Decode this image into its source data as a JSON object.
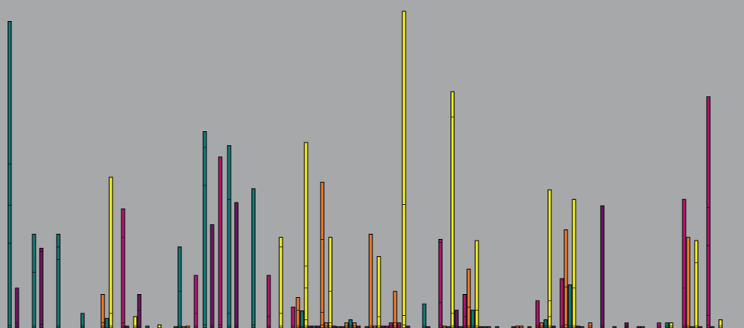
{
  "chart_data": {
    "type": "bar",
    "stacked": true,
    "title": "",
    "xlabel": "",
    "ylabel": "",
    "ylim": [
      0,
      100
    ],
    "grid": false,
    "legend": "none",
    "background": "#a7a8aa",
    "colors": {
      "teal": "#0f7b7b",
      "purple": "#6f1466",
      "magenta": "#b5136f",
      "yellow": "#f4f01e",
      "orange": "#ee7b2c"
    },
    "bars": [
      {
        "x": 12,
        "color": "teal",
        "segments": [
          0.8,
          26,
          12,
          13,
          45
        ]
      },
      {
        "x": 21,
        "color": "purple",
        "segments": [
          0.6,
          1,
          11
        ]
      },
      {
        "x": 42,
        "color": "teal",
        "segments": [
          0.6,
          17,
          12
        ]
      },
      {
        "x": 51,
        "color": "purple",
        "segments": [
          1.2,
          23,
          1
        ]
      },
      {
        "x": 72,
        "color": "teal",
        "segments": [
          0.6,
          21,
          4,
          4
        ]
      },
      {
        "x": 102,
        "color": "teal",
        "segments": [
          0.6,
          4
        ]
      },
      {
        "x": 127,
        "color": "orange",
        "segments": [
          0.6,
          1,
          9
        ]
      },
      {
        "x": 132,
        "color": "teal",
        "segments": [
          3
        ]
      },
      {
        "x": 137,
        "color": "yellow",
        "segments": [
          0.6,
          4,
          43
        ]
      },
      {
        "x": 152,
        "color": "magenta",
        "segments": [
          0.6,
          1,
          27,
          9
        ]
      },
      {
        "x": 157,
        "color": "purple",
        "segments": [
          0.6
        ]
      },
      {
        "x": 167,
        "color": "yellow",
        "segments": [
          0.6,
          3
        ]
      },
      {
        "x": 172,
        "color": "purple",
        "segments": [
          0.6,
          5,
          5
        ]
      },
      {
        "x": 182,
        "color": "teal",
        "segments": [
          0.6
        ]
      },
      {
        "x": 197,
        "color": "yellow",
        "segments": [
          1
        ]
      },
      {
        "x": 217,
        "color": "teal",
        "segments": [
          0.4
        ]
      },
      {
        "x": 222,
        "color": "teal",
        "segments": [
          0.6,
          11,
          14
        ]
      },
      {
        "x": 227,
        "color": "orange",
        "segments": [
          0.4
        ]
      },
      {
        "x": 232,
        "color": "orange",
        "segments": [
          0.6
        ]
      },
      {
        "x": 242,
        "color": "magenta",
        "segments": [
          0.6,
          4,
          12
        ]
      },
      {
        "x": 253,
        "color": "teal",
        "segments": [
          1,
          44,
          12,
          5
        ]
      },
      {
        "x": 262,
        "color": "purple",
        "segments": [
          0.6,
          32
        ]
      },
      {
        "x": 272,
        "color": "magenta",
        "segments": [
          1,
          53
        ]
      },
      {
        "x": 283,
        "color": "teal",
        "segments": [
          0.6,
          4,
          36,
          17
        ]
      },
      {
        "x": 292,
        "color": "purple",
        "segments": [
          0.6,
          39
        ]
      },
      {
        "x": 313,
        "color": "teal",
        "segments": [
          1,
          43
        ]
      },
      {
        "x": 332,
        "color": "magenta",
        "segments": [
          0.6,
          3,
          13
        ]
      },
      {
        "x": 347,
        "color": "yellow",
        "segments": [
          0.6,
          4,
          21,
          3
        ]
      },
      {
        "x": 362,
        "color": "magenta",
        "segments": [
          0.6,
          6
        ]
      },
      {
        "x": 368,
        "color": "orange",
        "segments": [
          0.6,
          5,
          4
        ]
      },
      {
        "x": 373,
        "color": "teal",
        "segments": [
          0.4,
          5
        ]
      },
      {
        "x": 378,
        "color": "yellow",
        "segments": [
          0.6,
          2,
          10,
          7,
          39
        ]
      },
      {
        "x": 383,
        "color": "purple",
        "segments": [
          0.6
        ]
      },
      {
        "x": 388,
        "color": "teal",
        "segments": [
          0.6
        ]
      },
      {
        "x": 393,
        "color": "purple",
        "segments": [
          0.6
        ]
      },
      {
        "x": 398,
        "color": "orange",
        "segments": [
          1,
          4,
          23,
          18
        ]
      },
      {
        "x": 403,
        "color": "orange",
        "segments": [
          0.6,
          1
        ]
      },
      {
        "x": 408,
        "color": "yellow",
        "segments": [
          0.6,
          1,
          10,
          17
        ]
      },
      {
        "x": 413,
        "color": "purple",
        "segments": [
          0.6
        ]
      },
      {
        "x": 418,
        "color": "teal",
        "segments": [
          0.4
        ]
      },
      {
        "x": 423,
        "color": "purple",
        "segments": [
          0.4
        ]
      },
      {
        "x": 428,
        "color": "orange",
        "segments": [
          0.6,
          1
        ]
      },
      {
        "x": 433,
        "color": "teal",
        "segments": [
          0.6,
          2
        ]
      },
      {
        "x": 438,
        "color": "orange",
        "segments": [
          0.6,
          1
        ]
      },
      {
        "x": 443,
        "color": "purple",
        "segments": [
          0.6
        ]
      },
      {
        "x": 453,
        "color": "teal",
        "segments": [
          0.4
        ]
      },
      {
        "x": 458,
        "color": "orange",
        "segments": [
          0.6,
          29
        ]
      },
      {
        "x": 463,
        "color": "orange",
        "segments": [
          0.6
        ]
      },
      {
        "x": 468,
        "color": "yellow",
        "segments": [
          0.6,
          3,
          19
        ]
      },
      {
        "x": 473,
        "color": "purple",
        "segments": [
          0.6
        ]
      },
      {
        "x": 478,
        "color": "magenta",
        "segments": [
          0.6
        ]
      },
      {
        "x": 483,
        "color": "magenta",
        "segments": [
          0.6,
          1
        ]
      },
      {
        "x": 488,
        "color": "orange",
        "segments": [
          0.6,
          1,
          10
        ]
      },
      {
        "x": 493,
        "color": "magenta",
        "segments": [
          0.6,
          1
        ]
      },
      {
        "x": 499,
        "color": "yellow",
        "segments": [
          1,
          3,
          35,
          61
        ]
      },
      {
        "x": 504,
        "color": "purple",
        "segments": [
          0.6
        ]
      },
      {
        "x": 524,
        "color": "teal",
        "segments": [
          0.6,
          7
        ]
      },
      {
        "x": 529,
        "color": "purple",
        "segments": [
          0.4
        ]
      },
      {
        "x": 544,
        "color": "magenta",
        "segments": [
          1,
          7,
          19,
          1
        ]
      },
      {
        "x": 549,
        "color": "orange",
        "segments": [
          0.6
        ]
      },
      {
        "x": 554,
        "color": "teal",
        "segments": [
          0.4
        ]
      },
      {
        "x": 559,
        "color": "yellow",
        "segments": [
          0.6,
          4,
          62,
          8
        ]
      },
      {
        "x": 564,
        "color": "purple",
        "segments": [
          0.6,
          5
        ]
      },
      {
        "x": 569,
        "color": "teal",
        "segments": [
          0.4
        ]
      },
      {
        "x": 574,
        "color": "magenta",
        "segments": [
          0.6,
          3,
          7
        ]
      },
      {
        "x": 579,
        "color": "orange",
        "segments": [
          0.6,
          6,
          12
        ]
      },
      {
        "x": 584,
        "color": "teal",
        "segments": [
          0.6,
          5
        ]
      },
      {
        "x": 589,
        "color": "yellow",
        "segments": [
          0.6,
          5,
          22
        ]
      },
      {
        "x": 594,
        "color": "purple",
        "segments": [
          0.4
        ]
      },
      {
        "x": 599,
        "color": "teal",
        "segments": [
          0.4
        ]
      },
      {
        "x": 604,
        "color": "teal",
        "segments": [
          0.4
        ]
      },
      {
        "x": 614,
        "color": "teal",
        "segments": [
          0.4
        ]
      },
      {
        "x": 634,
        "color": "purple",
        "segments": [
          0.4
        ]
      },
      {
        "x": 639,
        "color": "orange",
        "segments": [
          0.6
        ]
      },
      {
        "x": 644,
        "color": "orange",
        "segments": [
          0.6
        ]
      },
      {
        "x": 654,
        "color": "purple",
        "segments": [
          0.4
        ]
      },
      {
        "x": 664,
        "color": "magenta",
        "segments": [
          0.6,
          8
        ]
      },
      {
        "x": 669,
        "color": "orange",
        "segments": [
          0.6,
          1
        ]
      },
      {
        "x": 674,
        "color": "teal",
        "segments": [
          0.6,
          2
        ]
      },
      {
        "x": 679,
        "color": "yellow",
        "segments": [
          0.6,
          3,
          5,
          35
        ]
      },
      {
        "x": 684,
        "color": "purple",
        "segments": [
          0.6
        ]
      },
      {
        "x": 694,
        "color": "magenta",
        "segments": [
          0.6,
          15
        ]
      },
      {
        "x": 699,
        "color": "orange",
        "segments": [
          1,
          12,
          18
        ]
      },
      {
        "x": 704,
        "color": "teal",
        "segments": [
          0.6,
          13
        ]
      },
      {
        "x": 709,
        "color": "yellow",
        "segments": [
          0.6,
          12,
          28
        ]
      },
      {
        "x": 714,
        "color": "purple",
        "segments": [
          0.6
        ]
      },
      {
        "x": 719,
        "color": "teal",
        "segments": [
          0.4
        ]
      },
      {
        "x": 729,
        "color": "orange",
        "segments": [
          0.6,
          1
        ]
      },
      {
        "x": 744,
        "color": "purple",
        "segments": [
          0.6,
          38
        ]
      },
      {
        "x": 759,
        "color": "teal",
        "segments": [
          0.4
        ]
      },
      {
        "x": 774,
        "color": "purple",
        "segments": [
          0.6,
          1
        ]
      },
      {
        "x": 789,
        "color": "purple",
        "segments": [
          0.4
        ]
      },
      {
        "x": 794,
        "color": "teal",
        "segments": [
          0.4
        ]
      },
      {
        "x": 814,
        "color": "magenta",
        "segments": [
          0.6,
          1
        ]
      },
      {
        "x": 824,
        "color": "teal",
        "segments": [
          0.6,
          1
        ]
      },
      {
        "x": 829,
        "color": "yellow",
        "segments": [
          0.6,
          1
        ]
      },
      {
        "x": 845,
        "color": "magenta",
        "segments": [
          0.6,
          12,
          28
        ]
      },
      {
        "x": 850,
        "color": "orange",
        "segments": [
          0.6,
          28
        ]
      },
      {
        "x": 855,
        "color": "teal",
        "segments": [
          0.4
        ]
      },
      {
        "x": 860,
        "color": "yellow",
        "segments": [
          0.6,
          20,
          7
        ]
      },
      {
        "x": 865,
        "color": "purple",
        "segments": [
          0.4
        ]
      },
      {
        "x": 875,
        "color": "magenta",
        "segments": [
          1,
          3,
          22,
          12,
          35
        ]
      },
      {
        "x": 880,
        "color": "teal",
        "segments": [
          0.4
        ]
      },
      {
        "x": 890,
        "color": "yellow",
        "segments": [
          0.6,
          2
        ]
      }
    ]
  }
}
